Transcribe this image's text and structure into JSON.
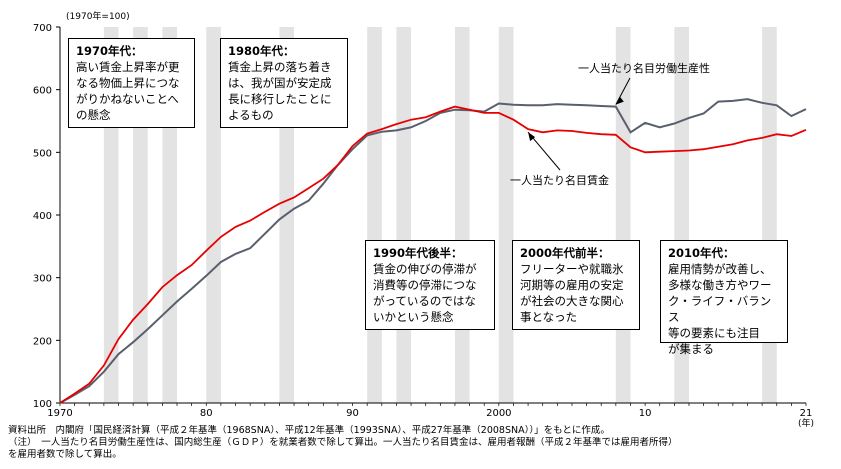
{
  "chart_data": {
    "type": "line",
    "unit_label": "(1970年=100)",
    "x_unit_label": "(年)",
    "x_tick_labels": [
      "1970",
      "80",
      "90",
      "2000",
      "10",
      "21"
    ],
    "y_tick_labels": [
      "100",
      "200",
      "300",
      "400",
      "500",
      "600",
      "700"
    ],
    "ylim": [
      100,
      700
    ],
    "xlim": [
      1970,
      2021
    ],
    "grid": false,
    "recession_bands_years": [
      1973,
      1975,
      1977,
      1980,
      1985,
      1991,
      1993,
      1997,
      2000,
      2008,
      2012,
      2018
    ],
    "x": [
      1970,
      1971,
      1972,
      1973,
      1974,
      1975,
      1976,
      1977,
      1978,
      1979,
      1980,
      1981,
      1982,
      1983,
      1984,
      1985,
      1986,
      1987,
      1988,
      1989,
      1990,
      1991,
      1992,
      1993,
      1994,
      1995,
      1996,
      1997,
      1998,
      1999,
      2000,
      2001,
      2002,
      2003,
      2004,
      2005,
      2006,
      2007,
      2008,
      2009,
      2010,
      2011,
      2012,
      2013,
      2014,
      2015,
      2016,
      2017,
      2018,
      2019,
      2020,
      2021
    ],
    "series": [
      {
        "name": "一人当たり名目労働生産性",
        "color": "#5a5f6e",
        "values": [
          100,
          113,
          127,
          150,
          178,
          197,
          218,
          240,
          262,
          282,
          303,
          325,
          338,
          347,
          370,
          393,
          410,
          423,
          450,
          480,
          505,
          527,
          533,
          535,
          540,
          550,
          563,
          568,
          567,
          565,
          578,
          576,
          575,
          575,
          577,
          576,
          575,
          574,
          573,
          532,
          547,
          540,
          546,
          555,
          562,
          581,
          582,
          585,
          579,
          575,
          558,
          569
        ]
      },
      {
        "name": "一人当たり名目賃金",
        "color": "#e60000",
        "values": [
          100,
          115,
          131,
          160,
          202,
          233,
          258,
          285,
          304,
          320,
          343,
          365,
          381,
          391,
          405,
          418,
          428,
          443,
          458,
          480,
          510,
          530,
          537,
          545,
          552,
          556,
          565,
          573,
          568,
          563,
          563,
          552,
          537,
          532,
          535,
          534,
          531,
          529,
          528,
          508,
          500,
          501,
          502,
          503,
          505,
          509,
          513,
          519,
          523,
          529,
          526,
          536
        ]
      }
    ],
    "series_labels": [
      {
        "series": 0,
        "text": "一人当たり名目労働生産性"
      },
      {
        "series": 1,
        "text": "一人当たり名目賃金"
      }
    ]
  },
  "annotations": [
    {
      "title": "1970年代：",
      "body": "高い賃金上昇率が更\nなる物価上昇につな\nがりかねないことへ\nの懸念"
    },
    {
      "title": "1980年代：",
      "body": "賃金上昇の落ち着き\nは、我が国が安定成\n長に移行したことに\nよるもの"
    },
    {
      "title": "1990年代後半：",
      "body": "賃金の伸びの停滞が\n消費等の停滞につな\nがっているのではな\nいかという懸念"
    },
    {
      "title": "2000年代前半：",
      "body": "フリーターや就職氷\n河期等の雇用の安定\nが社会の大きな関心\n事となった"
    },
    {
      "title": "2010年代：",
      "body": "雇用情勢が改善し、\n多様な働き方やワー\nク・ライフ・バランス\n等の要素にも注目\nが集まる"
    }
  ],
  "notes": {
    "source": "資料出所　内閣府「国民経済計算（平成２年基準（1968SNA）、平成12年基準（1993SNA）、平成27年基準（2008SNA））」をもとに作成。",
    "note1": "（注）　一人当たり名目労働生産性は、国内総生産（ＧＤＰ）を就業者数で除して算出。一人当たり名目賃金は、雇用者報酬（平成２年基準では雇用者所得）",
    "note2": "を雇用者数で除して算出。"
  }
}
